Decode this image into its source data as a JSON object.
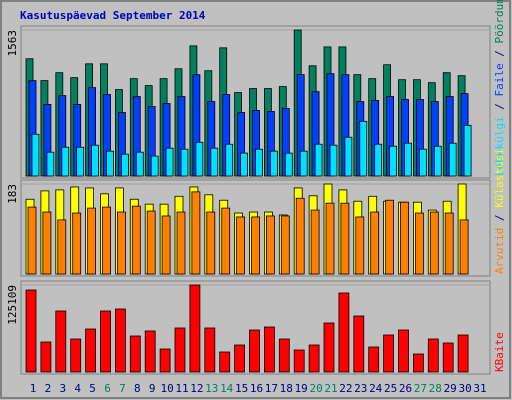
{
  "chart_data": [
    {
      "type": "bar",
      "title": "Kasutuspäevad September 2014",
      "ylim": [
        0,
        1563
      ],
      "yticks": [
        1563
      ],
      "legend_separator": " / ",
      "series": [
        {
          "name": "Pöördumisi",
          "color": "#00805c",
          "values": [
            1255,
            1021,
            1106,
            1053,
            1201,
            1201,
            925,
            1042,
            968,
            1042,
            1148,
            1393,
            1127,
            1372,
            893,
            936,
            936,
            957,
            1563,
            1180,
            1382,
            1382,
            1085,
            1042,
            1191,
            1031,
            1031,
            999,
            1106,
            1074,
            null
          ]
        },
        {
          "name": "Faile",
          "color": "#0040ff",
          "values": [
            1021,
            766,
            861,
            766,
            946,
            872,
            680,
            851,
            744,
            776,
            851,
            1085,
            797,
            872,
            680,
            702,
            691,
            723,
            1085,
            904,
            1095,
            1085,
            797,
            808,
            851,
            819,
            819,
            797,
            851,
            882,
            null
          ]
        },
        {
          "name": "Lehekülgi",
          "color": "#00e0ff",
          "values": [
            447,
            255,
            308,
            308,
            330,
            266,
            234,
            255,
            213,
            298,
            287,
            361,
            298,
            340,
            245,
            287,
            266,
            245,
            266,
            340,
            330,
            415,
            585,
            340,
            319,
            351,
            287,
            319,
            351,
            542,
            null
          ]
        }
      ]
    },
    {
      "type": "bar",
      "ylim": [
        0,
        183
      ],
      "yticks": [
        183
      ],
      "legend_separator": " / ",
      "series": [
        {
          "name": "Külastusi",
          "color": "#ffff00",
          "values": [
            152,
            169,
            171,
            177,
            175,
            163,
            175,
            152,
            142,
            142,
            158,
            177,
            161,
            150,
            124,
            126,
            126,
            120,
            175,
            159,
            183,
            171,
            148,
            158,
            148,
            146,
            146,
            130,
            148,
            183,
            null
          ]
        },
        {
          "name": "Arvutid",
          "color": "#ff8000",
          "values": [
            136,
            126,
            110,
            124,
            134,
            136,
            126,
            138,
            128,
            118,
            126,
            167,
            126,
            134,
            116,
            116,
            118,
            118,
            154,
            130,
            144,
            144,
            116,
            126,
            150,
            146,
            124,
            126,
            124,
            110,
            null
          ]
        }
      ]
    },
    {
      "type": "bar",
      "ylim": [
        0,
        125109
      ],
      "yticks": [
        125109
      ],
      "series": [
        {
          "name": "KBaite",
          "color": "#ff0000",
          "values": [
            117919,
            43141,
            87720,
            47455,
            61835,
            87720,
            90596,
            51770,
            58960,
            33075,
            63273,
            125109,
            63273,
            28761,
            38827,
            60398,
            64712,
            47455,
            31637,
            38827,
            70463,
            113604,
            80530,
            35951,
            53207,
            60398,
            25885,
            47455,
            41703,
            53207,
            null
          ]
        }
      ],
      "categories": [
        "1",
        "2",
        "3",
        "4",
        "5",
        "6",
        "7",
        "8",
        "9",
        "10",
        "11",
        "12",
        "13",
        "14",
        "15",
        "16",
        "17",
        "18",
        "19",
        "20",
        "21",
        "22",
        "23",
        "24",
        "25",
        "26",
        "27",
        "28",
        "29",
        "30",
        "31"
      ],
      "category_colors": [
        "#000080",
        "#000080",
        "#000080",
        "#000080",
        "#000080",
        "#00805c",
        "#00805c",
        "#000080",
        "#000080",
        "#000080",
        "#000080",
        "#000080",
        "#00805c",
        "#00805c",
        "#000080",
        "#000080",
        "#000080",
        "#000080",
        "#000080",
        "#00805c",
        "#00805c",
        "#000080",
        "#000080",
        "#000080",
        "#000080",
        "#000080",
        "#00805c",
        "#00805c",
        "#000080",
        "#000080",
        "#000080"
      ]
    }
  ]
}
